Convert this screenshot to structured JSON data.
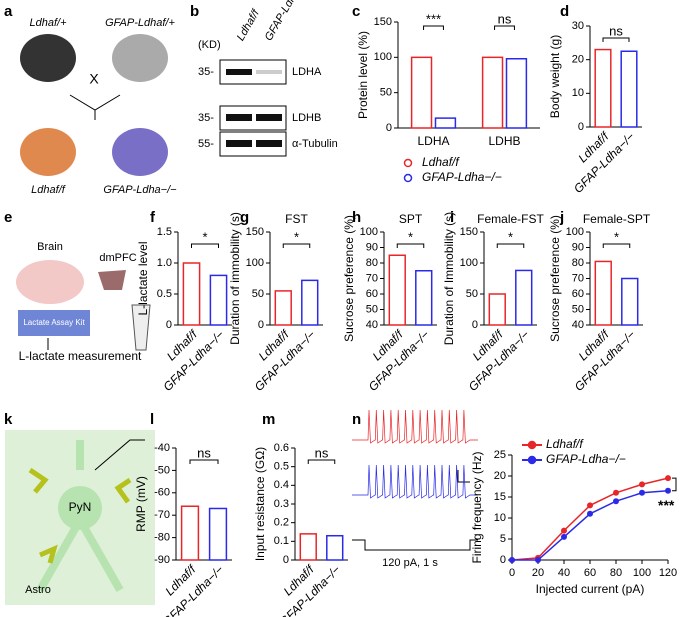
{
  "panel_letters": [
    "a",
    "b",
    "c",
    "d",
    "e",
    "f",
    "g",
    "h",
    "i",
    "j",
    "k",
    "l",
    "m",
    "n"
  ],
  "panel_a": {
    "parent1": "Ldhaf/+",
    "parent2": "GFAP-Ldhaf/+",
    "cross": "X",
    "child1": "Ldhaf/f",
    "child2": "GFAP-Ldha−/−"
  },
  "panel_b": {
    "unit": "(KD)",
    "lanes": [
      "Ldhaf/f",
      "GFAP-Ldha−/−"
    ],
    "proteins": [
      "LDHA",
      "LDHB",
      "α-Tubulin"
    ],
    "markers": [
      "35-",
      "35-",
      "55-"
    ]
  },
  "panel_e": {
    "brain": "Brain",
    "region": "dmPFC",
    "kit": "Lactate Assay Kit",
    "result": "L-lactate measurement"
  },
  "panel_k": {
    "neuron": "PyN",
    "astro": "Astro"
  },
  "panel_n_trace": {
    "stimulus": "120 pA, 1 s"
  },
  "chart_data": [
    {
      "type": "grouped-bar",
      "ylabel": "Protein level (%)",
      "categories": [
        "LDHA",
        "LDHB"
      ],
      "series": [
        {
          "name": "Ldhaf/f",
          "color": "#e8262a",
          "values": [
            100,
            100
          ]
        },
        {
          "name": "GFAP-Ldha−/−",
          "color": "#2a2ae8",
          "values": [
            14,
            98
          ]
        }
      ],
      "annotations": [
        "***",
        "ns"
      ],
      "ylim": [
        0,
        150
      ],
      "yticks": [
        0,
        50,
        100,
        150
      ]
    },
    {
      "type": "bar",
      "ylabel": "Body weight (g)",
      "categories": [
        "Ldhaf/f",
        "GFAP-Ldha−/−"
      ],
      "colors": [
        "#e8262a",
        "#2a2ae8"
      ],
      "values": [
        23,
        22.5
      ],
      "annotation": "ns",
      "ylim": [
        0,
        30
      ],
      "yticks": [
        0,
        10,
        20,
        30
      ]
    },
    {
      "type": "bar",
      "ylabel": "L-lactate level",
      "categories": [
        "Ldhaf/f",
        "GFAP-Ldha−/−"
      ],
      "colors": [
        "#e8262a",
        "#2a2ae8"
      ],
      "values": [
        1.0,
        0.8
      ],
      "annotation": "*",
      "ylim": [
        0,
        1.5
      ],
      "yticks": [
        0,
        0.5,
        {
          "value": 1,
          "label": "1.0"
        },
        1.5
      ]
    },
    {
      "type": "bar",
      "title": "FST",
      "ylabel": "Duration of immobility (s)",
      "categories": [
        "Ldhaf/f",
        "GFAP-Ldha−/−"
      ],
      "colors": [
        "#e8262a",
        "#2a2ae8"
      ],
      "values": [
        55,
        72
      ],
      "annotation": "*",
      "ylim": [
        0,
        150
      ],
      "yticks": [
        0,
        50,
        100,
        150
      ]
    },
    {
      "type": "bar",
      "title": "SPT",
      "ylabel": "Sucrose preference (%)",
      "categories": [
        "Ldhaf/f",
        "GFAP-Ldha−/−"
      ],
      "colors": [
        "#e8262a",
        "#2a2ae8"
      ],
      "values": [
        85,
        75
      ],
      "annotation": "*",
      "ylim": [
        40,
        100
      ],
      "yticks": [
        40,
        50,
        60,
        70,
        80,
        90,
        100
      ]
    },
    {
      "type": "bar",
      "title": "Female-FST",
      "ylabel": "Duration of Immobility (s)",
      "categories": [
        "Ldhaf/f",
        "GFAP-Ldha−/−"
      ],
      "colors": [
        "#e8262a",
        "#2a2ae8"
      ],
      "values": [
        50,
        88
      ],
      "annotation": "*",
      "ylim": [
        0,
        150
      ],
      "yticks": [
        0,
        50,
        100,
        150
      ]
    },
    {
      "type": "bar",
      "title": "Female-SPT",
      "ylabel": "Sucrose preference (%)",
      "categories": [
        "Ldhaf/f",
        "GFAP-Ldha−/−"
      ],
      "colors": [
        "#e8262a",
        "#2a2ae8"
      ],
      "values": [
        81,
        70
      ],
      "annotation": "*",
      "ylim": [
        40,
        100
      ],
      "yticks": [
        40,
        50,
        60,
        70,
        80,
        90,
        100
      ]
    },
    {
      "type": "bar",
      "ylabel": "RMP (mV)",
      "categories": [
        "Ldhaf/f",
        "GFAP-Ldha−/−"
      ],
      "colors": [
        "#e8262a",
        "#2a2ae8"
      ],
      "values": [
        -66,
        -67
      ],
      "annotation": "ns",
      "ylim": [
        -90,
        -40
      ],
      "yticks": [
        -90,
        -80,
        -70,
        -60,
        -50,
        -40
      ]
    },
    {
      "type": "bar",
      "ylabel": "Input resistance (GΩ)",
      "categories": [
        "Ldhaf/f",
        "GFAP-Ldha−/−"
      ],
      "colors": [
        "#e8262a",
        "#2a2ae8"
      ],
      "values": [
        0.14,
        0.13
      ],
      "annotation": "ns",
      "ylim": [
        0,
        0.6
      ],
      "yticks": [
        0,
        0.1,
        0.2,
        0.3,
        0.4,
        0.5,
        0.6
      ]
    },
    {
      "type": "line",
      "xlabel": "Injected current (pA)",
      "ylabel": "Firing frequency (Hz)",
      "x": [
        0,
        20,
        40,
        60,
        80,
        100,
        120
      ],
      "series": [
        {
          "name": "Ldhaf/f",
          "color": "#e8262a",
          "values": [
            0,
            0.5,
            7,
            13,
            16,
            18,
            19.5
          ]
        },
        {
          "name": "GFAP-Ldha−/−",
          "color": "#2a2ae8",
          "values": [
            0,
            0,
            5.5,
            11,
            14,
            16,
            16.5
          ]
        }
      ],
      "annotation": "***",
      "xlim": [
        0,
        120
      ],
      "xticks": [
        0,
        20,
        40,
        60,
        80,
        100,
        120
      ],
      "ylim": [
        0,
        25
      ],
      "yticks": [
        0,
        5,
        10,
        15,
        20,
        25
      ]
    }
  ]
}
